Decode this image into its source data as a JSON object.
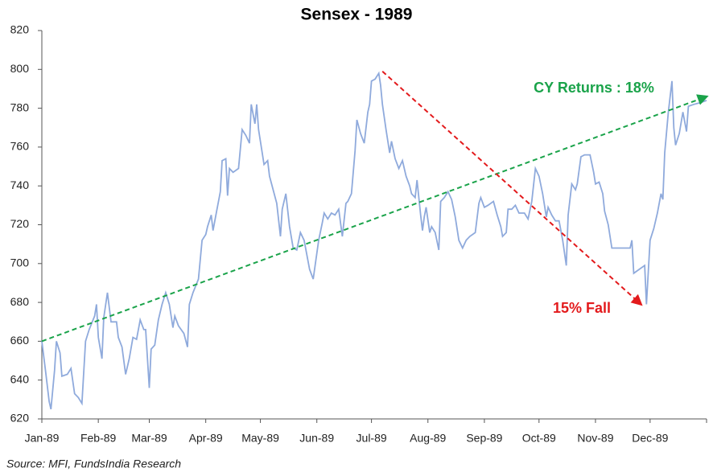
{
  "chart_data": {
    "type": "line",
    "title": "Sensex - 1989",
    "source": "Source: MFI, FundsIndia Research",
    "xlim": [
      0,
      365
    ],
    "ylim": [
      620,
      820
    ],
    "yticks": [
      620,
      640,
      660,
      680,
      700,
      720,
      740,
      760,
      780,
      800,
      820
    ],
    "xticks": [
      {
        "value": 0,
        "label": "Jan-89"
      },
      {
        "value": 31,
        "label": "Feb-89"
      },
      {
        "value": 59,
        "label": "Mar-89"
      },
      {
        "value": 90,
        "label": "Apr-89"
      },
      {
        "value": 120,
        "label": "May-89"
      },
      {
        "value": 151,
        "label": "Jun-89"
      },
      {
        "value": 181,
        "label": "Jul-89"
      },
      {
        "value": 212,
        "label": "Aug-89"
      },
      {
        "value": 243,
        "label": "Sep-89"
      },
      {
        "value": 273,
        "label": "Oct-89"
      },
      {
        "value": 304,
        "label": "Nov-89"
      },
      {
        "value": 334,
        "label": "Dec-89"
      }
    ],
    "color": "#8faadc",
    "x": [
      0,
      2,
      4,
      5,
      7,
      8,
      10,
      11,
      14,
      16,
      18,
      20,
      22,
      24,
      26,
      29,
      30,
      31,
      33,
      34,
      36,
      38,
      41,
      42,
      44,
      46,
      48,
      50,
      52,
      54,
      56,
      57,
      59,
      60,
      62,
      64,
      66,
      68,
      70,
      72,
      73,
      75,
      78,
      80,
      81,
      83,
      86,
      88,
      90,
      91,
      93,
      94,
      96,
      98,
      99,
      101,
      102,
      103,
      105,
      108,
      110,
      112,
      114,
      115,
      117,
      118,
      119,
      122,
      124,
      125,
      127,
      129,
      131,
      132,
      134,
      136,
      138,
      140,
      142,
      144,
      147,
      149,
      152,
      154,
      155,
      157,
      159,
      161,
      163,
      165,
      167,
      168,
      170,
      172,
      173,
      175,
      177,
      179,
      180,
      181,
      183,
      185,
      186,
      187,
      189,
      191,
      192,
      194,
      196,
      198,
      200,
      202,
      203,
      205,
      206,
      208,
      209,
      210,
      211,
      213,
      214,
      216,
      218,
      219,
      221,
      223,
      225,
      227,
      229,
      231,
      233,
      235,
      238,
      240,
      241,
      243,
      245,
      248,
      250,
      252,
      253,
      255,
      256,
      258,
      260,
      262,
      265,
      267,
      269,
      271,
      273,
      275,
      277,
      278,
      280,
      282,
      284,
      286,
      288,
      289,
      291,
      293,
      294,
      296,
      298,
      301,
      303,
      304,
      306,
      308,
      309,
      311,
      313,
      318,
      323,
      324,
      325,
      328,
      331,
      332,
      334,
      336,
      338,
      340,
      341,
      342,
      344,
      346,
      347,
      348,
      350,
      352,
      354,
      355,
      358,
      362,
      365
    ],
    "values": [
      660,
      645,
      629,
      625,
      645,
      660,
      654,
      642,
      643,
      646,
      633,
      631,
      628,
      660,
      666,
      673,
      679,
      662,
      651,
      672,
      685,
      670,
      670,
      662,
      657,
      643,
      651,
      662,
      661,
      671,
      666,
      666,
      636,
      656,
      658,
      671,
      679,
      685,
      679,
      667,
      673,
      668,
      664,
      657,
      679,
      685,
      692,
      712,
      715,
      719,
      725,
      717,
      727,
      737,
      753,
      754,
      735,
      749,
      747,
      749,
      769,
      766,
      762,
      782,
      772,
      782,
      769,
      751,
      753,
      745,
      738,
      731,
      714,
      728,
      736,
      719,
      708,
      707,
      716,
      712,
      697,
      692,
      712,
      721,
      726,
      723,
      726,
      725,
      728,
      714,
      731,
      732,
      736,
      758,
      774,
      767,
      762,
      778,
      782,
      794,
      795,
      798,
      792,
      782,
      769,
      757,
      763,
      754,
      749,
      753,
      745,
      740,
      736,
      734,
      743,
      725,
      717,
      724,
      729,
      716,
      719,
      716,
      707,
      732,
      734,
      737,
      733,
      724,
      712,
      708,
      712,
      714,
      716,
      731,
      734,
      729,
      730,
      732,
      725,
      719,
      714,
      716,
      728,
      728,
      730,
      726,
      726,
      723,
      732,
      749,
      745,
      736,
      724,
      729,
      725,
      722,
      722,
      712,
      699,
      725,
      741,
      738,
      741,
      755,
      756,
      756,
      747,
      741,
      742,
      736,
      727,
      720,
      708,
      708,
      708,
      712,
      695,
      697,
      699,
      679,
      712,
      718,
      726,
      736,
      733,
      757,
      778,
      794,
      770,
      761,
      767,
      778,
      768,
      781,
      782,
      783,
      784
    ],
    "trend_lines": [
      {
        "label": "CY Returns : 18%",
        "color": "#1aa34a",
        "x": [
          0,
          365
        ],
        "y": [
          660,
          786
        ]
      },
      {
        "label": "15% Fall",
        "color": "#e31a1c",
        "x": [
          187,
          329
        ],
        "y": [
          799,
          679
        ]
      }
    ]
  }
}
